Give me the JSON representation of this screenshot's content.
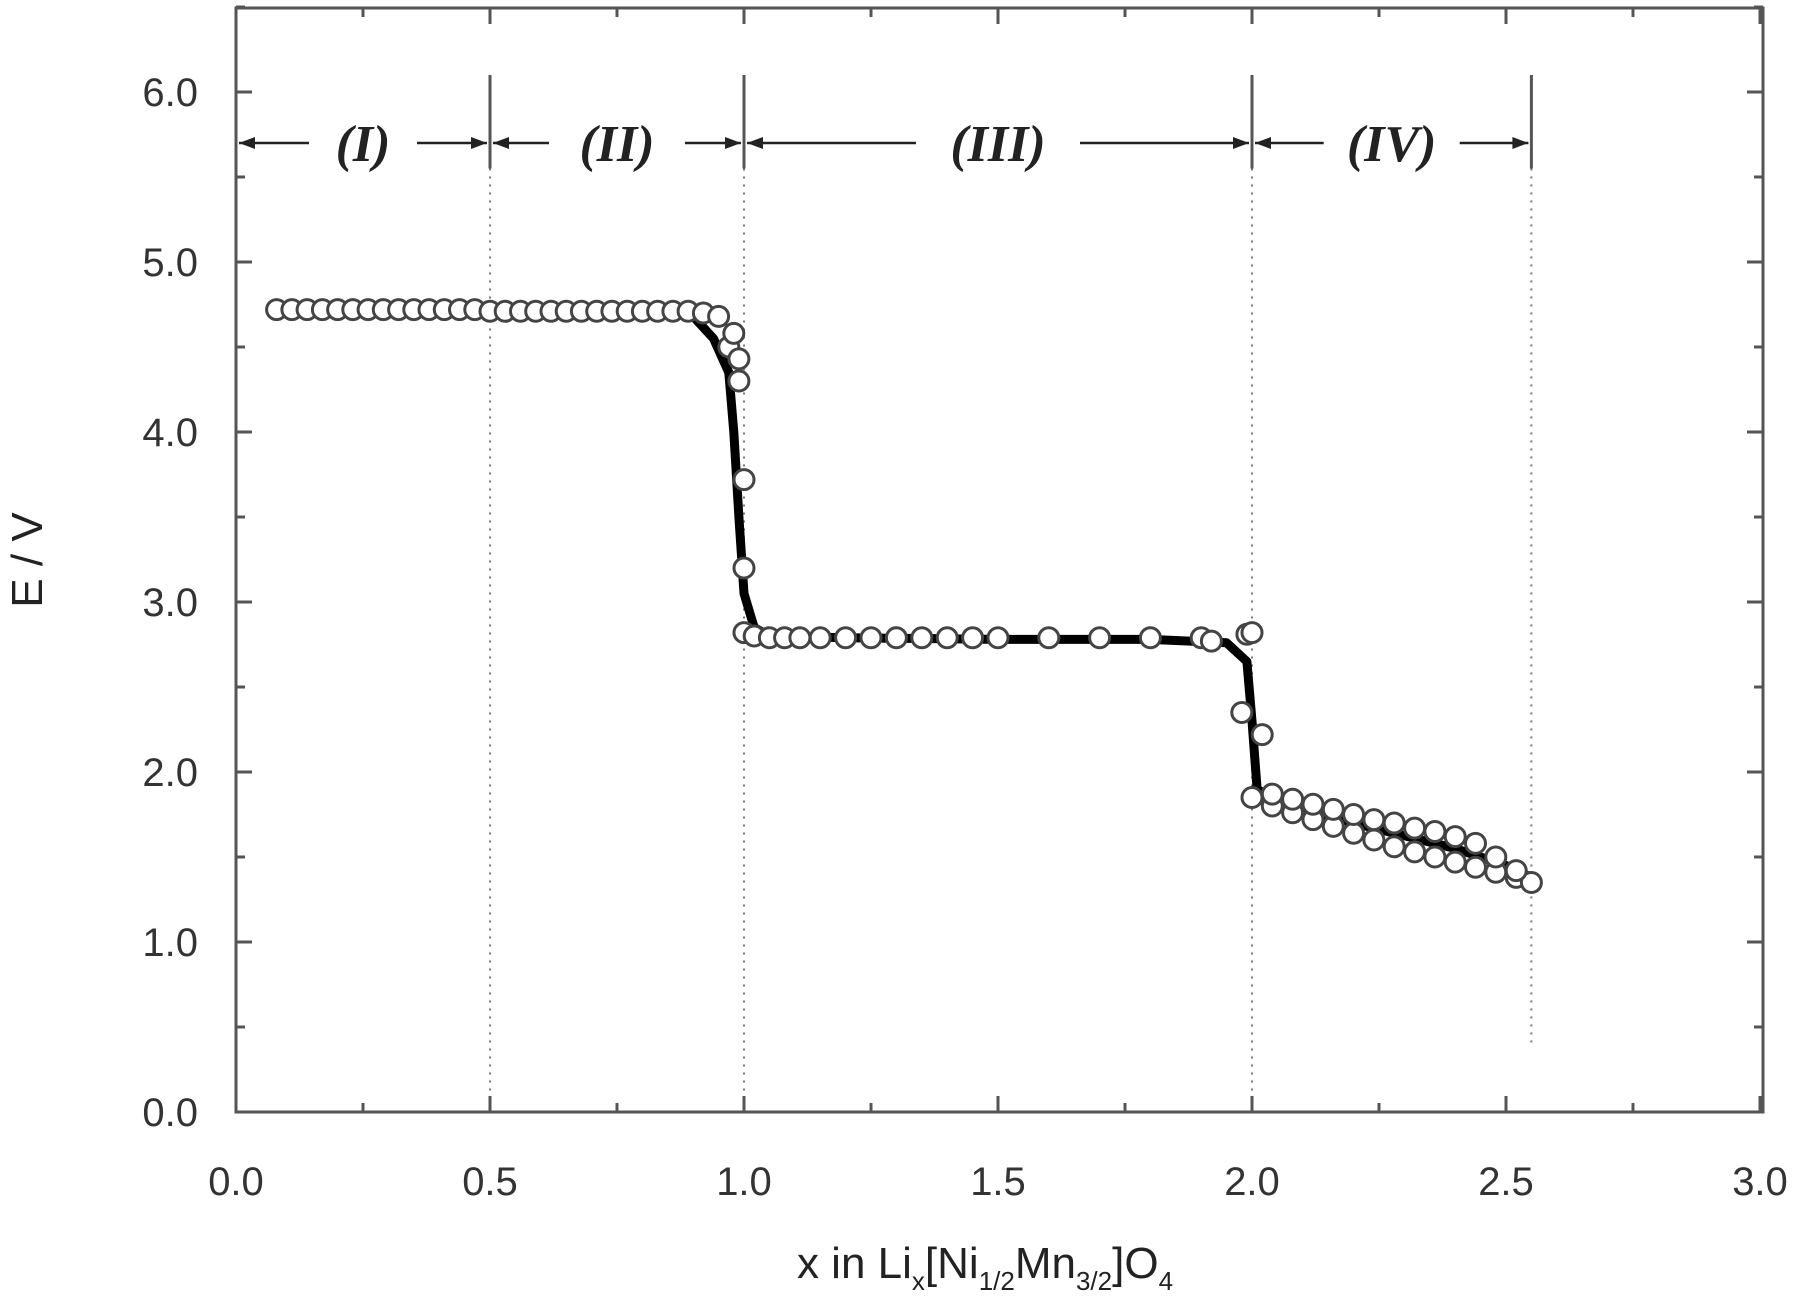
{
  "chart_data": {
    "type": "scatter",
    "xlabel": {
      "prefix": "x  in  Li",
      "parts": [
        {
          "text": "x",
          "sub": true
        },
        {
          "text": "[Ni",
          "sub": false
        },
        {
          "text": "1/2",
          "sub": true
        },
        {
          "text": "Mn",
          "sub": false
        },
        {
          "text": "3/2",
          "sub": true
        },
        {
          "text": "]O",
          "sub": false
        },
        {
          "text": "4",
          "sub": true
        }
      ]
    },
    "ylabel": "E  /  V",
    "xlim": [
      0.0,
      3.0
    ],
    "ylim": [
      0.0,
      6.5
    ],
    "x_ticks": [
      "0.0",
      "0.5",
      "1.0",
      "1.5",
      "2.0",
      "2.5",
      "3.0"
    ],
    "y_ticks": [
      "0.0",
      "1.0",
      "2.0",
      "3.0",
      "4.0",
      "5.0",
      "6.0"
    ],
    "grid": false,
    "regions": [
      {
        "label": "(I)",
        "from": 0.0,
        "to": 0.5
      },
      {
        "label": "(II)",
        "from": 0.5,
        "to": 1.0
      },
      {
        "label": "(III)",
        "from": 1.0,
        "to": 2.0
      },
      {
        "label": "(IV)",
        "from": 2.0,
        "to": 2.55
      }
    ],
    "dividers_x": [
      0.5,
      1.0,
      2.0,
      2.55
    ],
    "series": [
      {
        "style": "line",
        "x": [
          0.08,
          0.2,
          0.4,
          0.6,
          0.8,
          0.9,
          0.94,
          0.97,
          0.98,
          0.99,
          1.0,
          1.02,
          1.05,
          1.2,
          1.5,
          1.8,
          1.95,
          1.99,
          2.0,
          2.01,
          2.05,
          2.2,
          2.4,
          2.5,
          2.55
        ],
        "y": [
          4.72,
          4.72,
          4.72,
          4.71,
          4.71,
          4.68,
          4.55,
          4.35,
          4.0,
          3.5,
          3.05,
          2.85,
          2.8,
          2.79,
          2.78,
          2.78,
          2.76,
          2.65,
          2.3,
          1.9,
          1.82,
          1.7,
          1.55,
          1.45,
          1.38
        ]
      },
      {
        "style": "markers",
        "x": [
          0.08,
          0.11,
          0.14,
          0.17,
          0.2,
          0.23,
          0.26,
          0.29,
          0.32,
          0.35,
          0.38,
          0.41,
          0.44,
          0.47,
          0.5,
          0.53,
          0.56,
          0.59,
          0.62,
          0.65,
          0.68,
          0.71,
          0.74,
          0.77,
          0.8,
          0.83,
          0.86,
          0.89,
          0.92,
          0.95,
          0.97,
          0.98,
          0.99,
          0.99,
          1.0,
          1.0,
          1.0,
          1.02,
          1.05,
          1.08,
          1.11,
          1.15,
          1.2,
          1.25,
          1.3,
          1.35,
          1.4,
          1.45,
          1.5,
          1.6,
          1.7,
          1.8,
          1.9,
          1.92,
          1.99,
          2.0,
          1.98,
          2.02,
          2.0,
          2.04,
          2.08,
          2.12,
          2.16,
          2.2,
          2.24,
          2.28,
          2.32,
          2.36,
          2.4,
          2.44,
          2.48,
          2.52,
          2.55,
          2.04,
          2.08,
          2.12,
          2.16,
          2.2,
          2.24,
          2.28,
          2.32,
          2.36,
          2.4,
          2.44,
          2.48,
          2.52
        ],
        "y": [
          4.72,
          4.72,
          4.72,
          4.72,
          4.72,
          4.72,
          4.72,
          4.72,
          4.72,
          4.72,
          4.72,
          4.72,
          4.72,
          4.72,
          4.71,
          4.71,
          4.71,
          4.71,
          4.71,
          4.71,
          4.71,
          4.71,
          4.71,
          4.71,
          4.71,
          4.71,
          4.71,
          4.71,
          4.7,
          4.68,
          4.5,
          4.58,
          4.43,
          4.3,
          3.72,
          3.2,
          2.82,
          2.8,
          2.79,
          2.79,
          2.79,
          2.79,
          2.79,
          2.79,
          2.79,
          2.79,
          2.79,
          2.79,
          2.79,
          2.79,
          2.79,
          2.79,
          2.79,
          2.77,
          2.81,
          2.82,
          2.35,
          2.22,
          1.85,
          1.8,
          1.76,
          1.72,
          1.68,
          1.64,
          1.6,
          1.56,
          1.53,
          1.5,
          1.47,
          1.44,
          1.41,
          1.38,
          1.35,
          1.87,
          1.84,
          1.81,
          1.78,
          1.75,
          1.72,
          1.7,
          1.67,
          1.65,
          1.62,
          1.58,
          1.5,
          1.42
        ]
      }
    ]
  }
}
